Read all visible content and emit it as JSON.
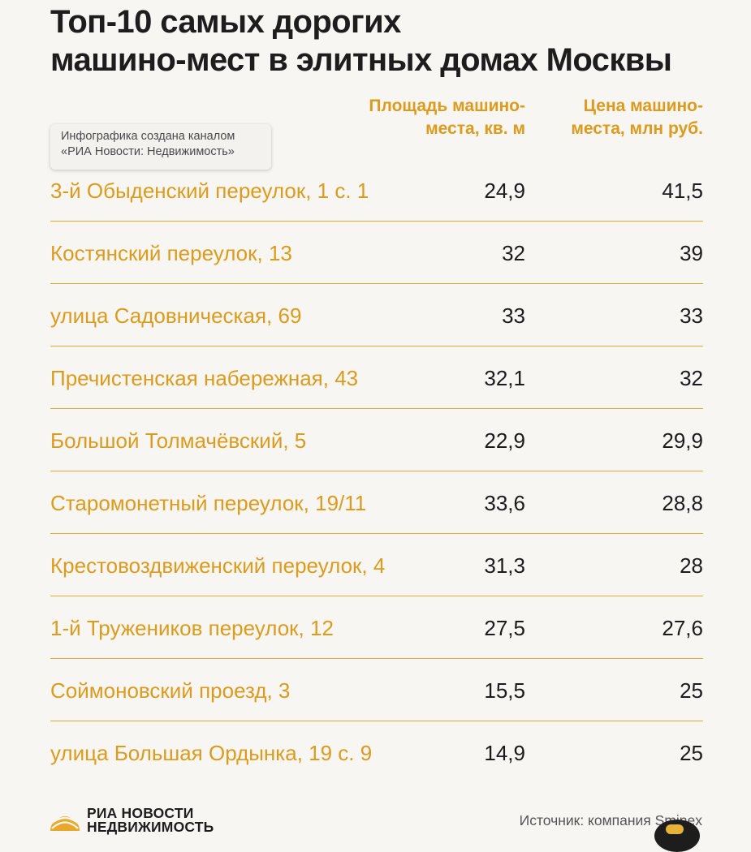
{
  "title": "Топ-10 самых дорогих\nмашино-мест в элитных домах Москвы",
  "credit": "Инфографика создана каналом\n«РИА Новости: Недвижимость»",
  "source": "Источник: компания Sminex",
  "logo": {
    "text": "РИА НОВОСТИ\nНЕДВИЖИМОСТЬ",
    "icon": "ria-sun-icon"
  },
  "colors": {
    "accent": "#dc9b1d",
    "text": "#1b1b1b",
    "background": "#f7f6f3",
    "rule": "#e1ab3a"
  },
  "chart_data": {
    "type": "table",
    "columns": [
      "",
      "Площадь машино-\nместа, кв. м",
      "Цена машино-\nместа, млн руб."
    ],
    "rows": [
      [
        "3-й Обыденский переулок, 1 с. 1",
        "24,9",
        "41,5"
      ],
      [
        "Костянский переулок, 13",
        "32",
        "39"
      ],
      [
        "улица Садовническая, 69",
        "33",
        "33"
      ],
      [
        "Пречистенская набережная, 43",
        "32,1",
        "32"
      ],
      [
        "Большой Толмачёвский, 5",
        "22,9",
        "29,9"
      ],
      [
        "Старомонетный переулок, 19/11",
        "33,6",
        "28,8"
      ],
      [
        "Крестовоздвиженский переулок, 4",
        "31,3",
        "28"
      ],
      [
        "1-й Тружеников переулок, 12",
        "27,5",
        "27,6"
      ],
      [
        "Соймоновский проезд, 3",
        "15,5",
        "25"
      ],
      [
        "улица Большая Ордынка, 19 с. 9",
        "14,9",
        "25"
      ]
    ]
  }
}
